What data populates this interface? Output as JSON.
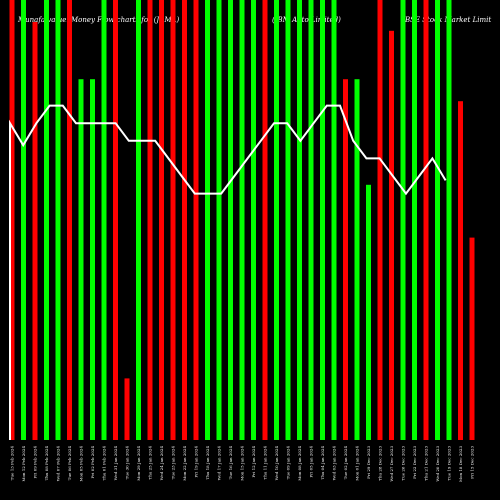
{
  "chart_data": {
    "type": "bar",
    "title_parts": [
      "Munafa value: Money Flow charts for (JBMA)",
      "(JBM Auto Limited)",
      "BSE Stock Market Limit"
    ],
    "ylim": [
      0,
      100
    ],
    "series": [
      {
        "name": "",
        "colors": [
          "#ff0000",
          "#00ff00",
          "#ff0000",
          "#00ff00",
          "#00ff00",
          "#ff0000",
          "#00ff00",
          "#00ff00",
          "#00ff00",
          "#ff0000",
          "#ff0000",
          "#00ff00",
          "#ff0000",
          "#ff0000",
          "#ff0000",
          "#ff0000",
          "#ff0000",
          "#00ff00",
          "#00ff00",
          "#00ff00",
          "#00ff00",
          "#00ff00",
          "#ff0000",
          "#00ff00",
          "#00ff00",
          "#00ff00",
          "#00ff00",
          "#00ff00",
          "#00ff00",
          "#ff0000",
          "#00ff00",
          "#00ff00",
          "#ff0000",
          "#ff0000",
          "#00ff00",
          "#00ff00",
          "#ff0000",
          "#00ff00",
          "#00ff00",
          "#ff0000",
          "#ff0000"
        ],
        "values": [
          100,
          100,
          95,
          100,
          100,
          100,
          82,
          82,
          100,
          100,
          14,
          100,
          100,
          100,
          100,
          100,
          100,
          100,
          100,
          100,
          100,
          100,
          100,
          100,
          100,
          100,
          100,
          100,
          100,
          82,
          82,
          58,
          100,
          93,
          100,
          100,
          100,
          100,
          100,
          77,
          46
        ]
      }
    ],
    "line_values": [
      72,
      67,
      72,
      76,
      76,
      72,
      72,
      72,
      72,
      68,
      68,
      68,
      64,
      60,
      56,
      56,
      56,
      60,
      64,
      68,
      72,
      72,
      68,
      72,
      76,
      76,
      68,
      64,
      64,
      60,
      56,
      60,
      64,
      59
    ],
    "x_labels": [
      "Tue 13 Feb 2024",
      "Mon 12 Feb 2024",
      "Fri 09 Feb 2024",
      "Thu 08 Feb 2024",
      "Wed 07 Feb 2024",
      "Tue 06 Feb 2024",
      "Mon 05 Feb 2024",
      "Fri 02 Feb 2024",
      "Thu 01 Feb 2024",
      "Wed 31 Jan 2024",
      "Tue 30 Jan 2024",
      "Mon 29 Jan 2024",
      "Thu 25 Jan 2024",
      "Wed 24 Jan 2024",
      "Tue 23 Jan 2024",
      "Mon 22 Jan 2024",
      "Fri 19 Jan 2024",
      "Thu 18 Jan 2024",
      "Wed 17 Jan 2024",
      "Tue 16 Jan 2024",
      "Mon 15 Jan 2024",
      "Fri 12 Jan 2024",
      "Thu 11 Jan 2024",
      "Wed 10 Jan 2024",
      "Tue 09 Jan 2024",
      "Mon 08 Jan 2024",
      "Fri 05 Jan 2024",
      "Thu 04 Jan 2024",
      "Wed 03 Jan 2024",
      "Tue 02 Jan 2024",
      "Mon 01 Jan 2024",
      "Fri 29 Dec 2023",
      "Thu 28 Dec 2023",
      "Wed 27 Dec 2023",
      "Tue 26 Dec 2023",
      "Fri 22 Dec 2023",
      "Thu 21 Dec 2023",
      "Wed 20 Dec 2023",
      "Tue 19 Dec 2023",
      "Mon 18 Dec 2023",
      "Fri 15 Dec 2023"
    ],
    "grid": false,
    "legend": "none",
    "background": "#000000",
    "line_color": "#ffffff",
    "label_color": "#ffffff",
    "up_color": "#00ff00",
    "down_color": "#ff0000"
  }
}
